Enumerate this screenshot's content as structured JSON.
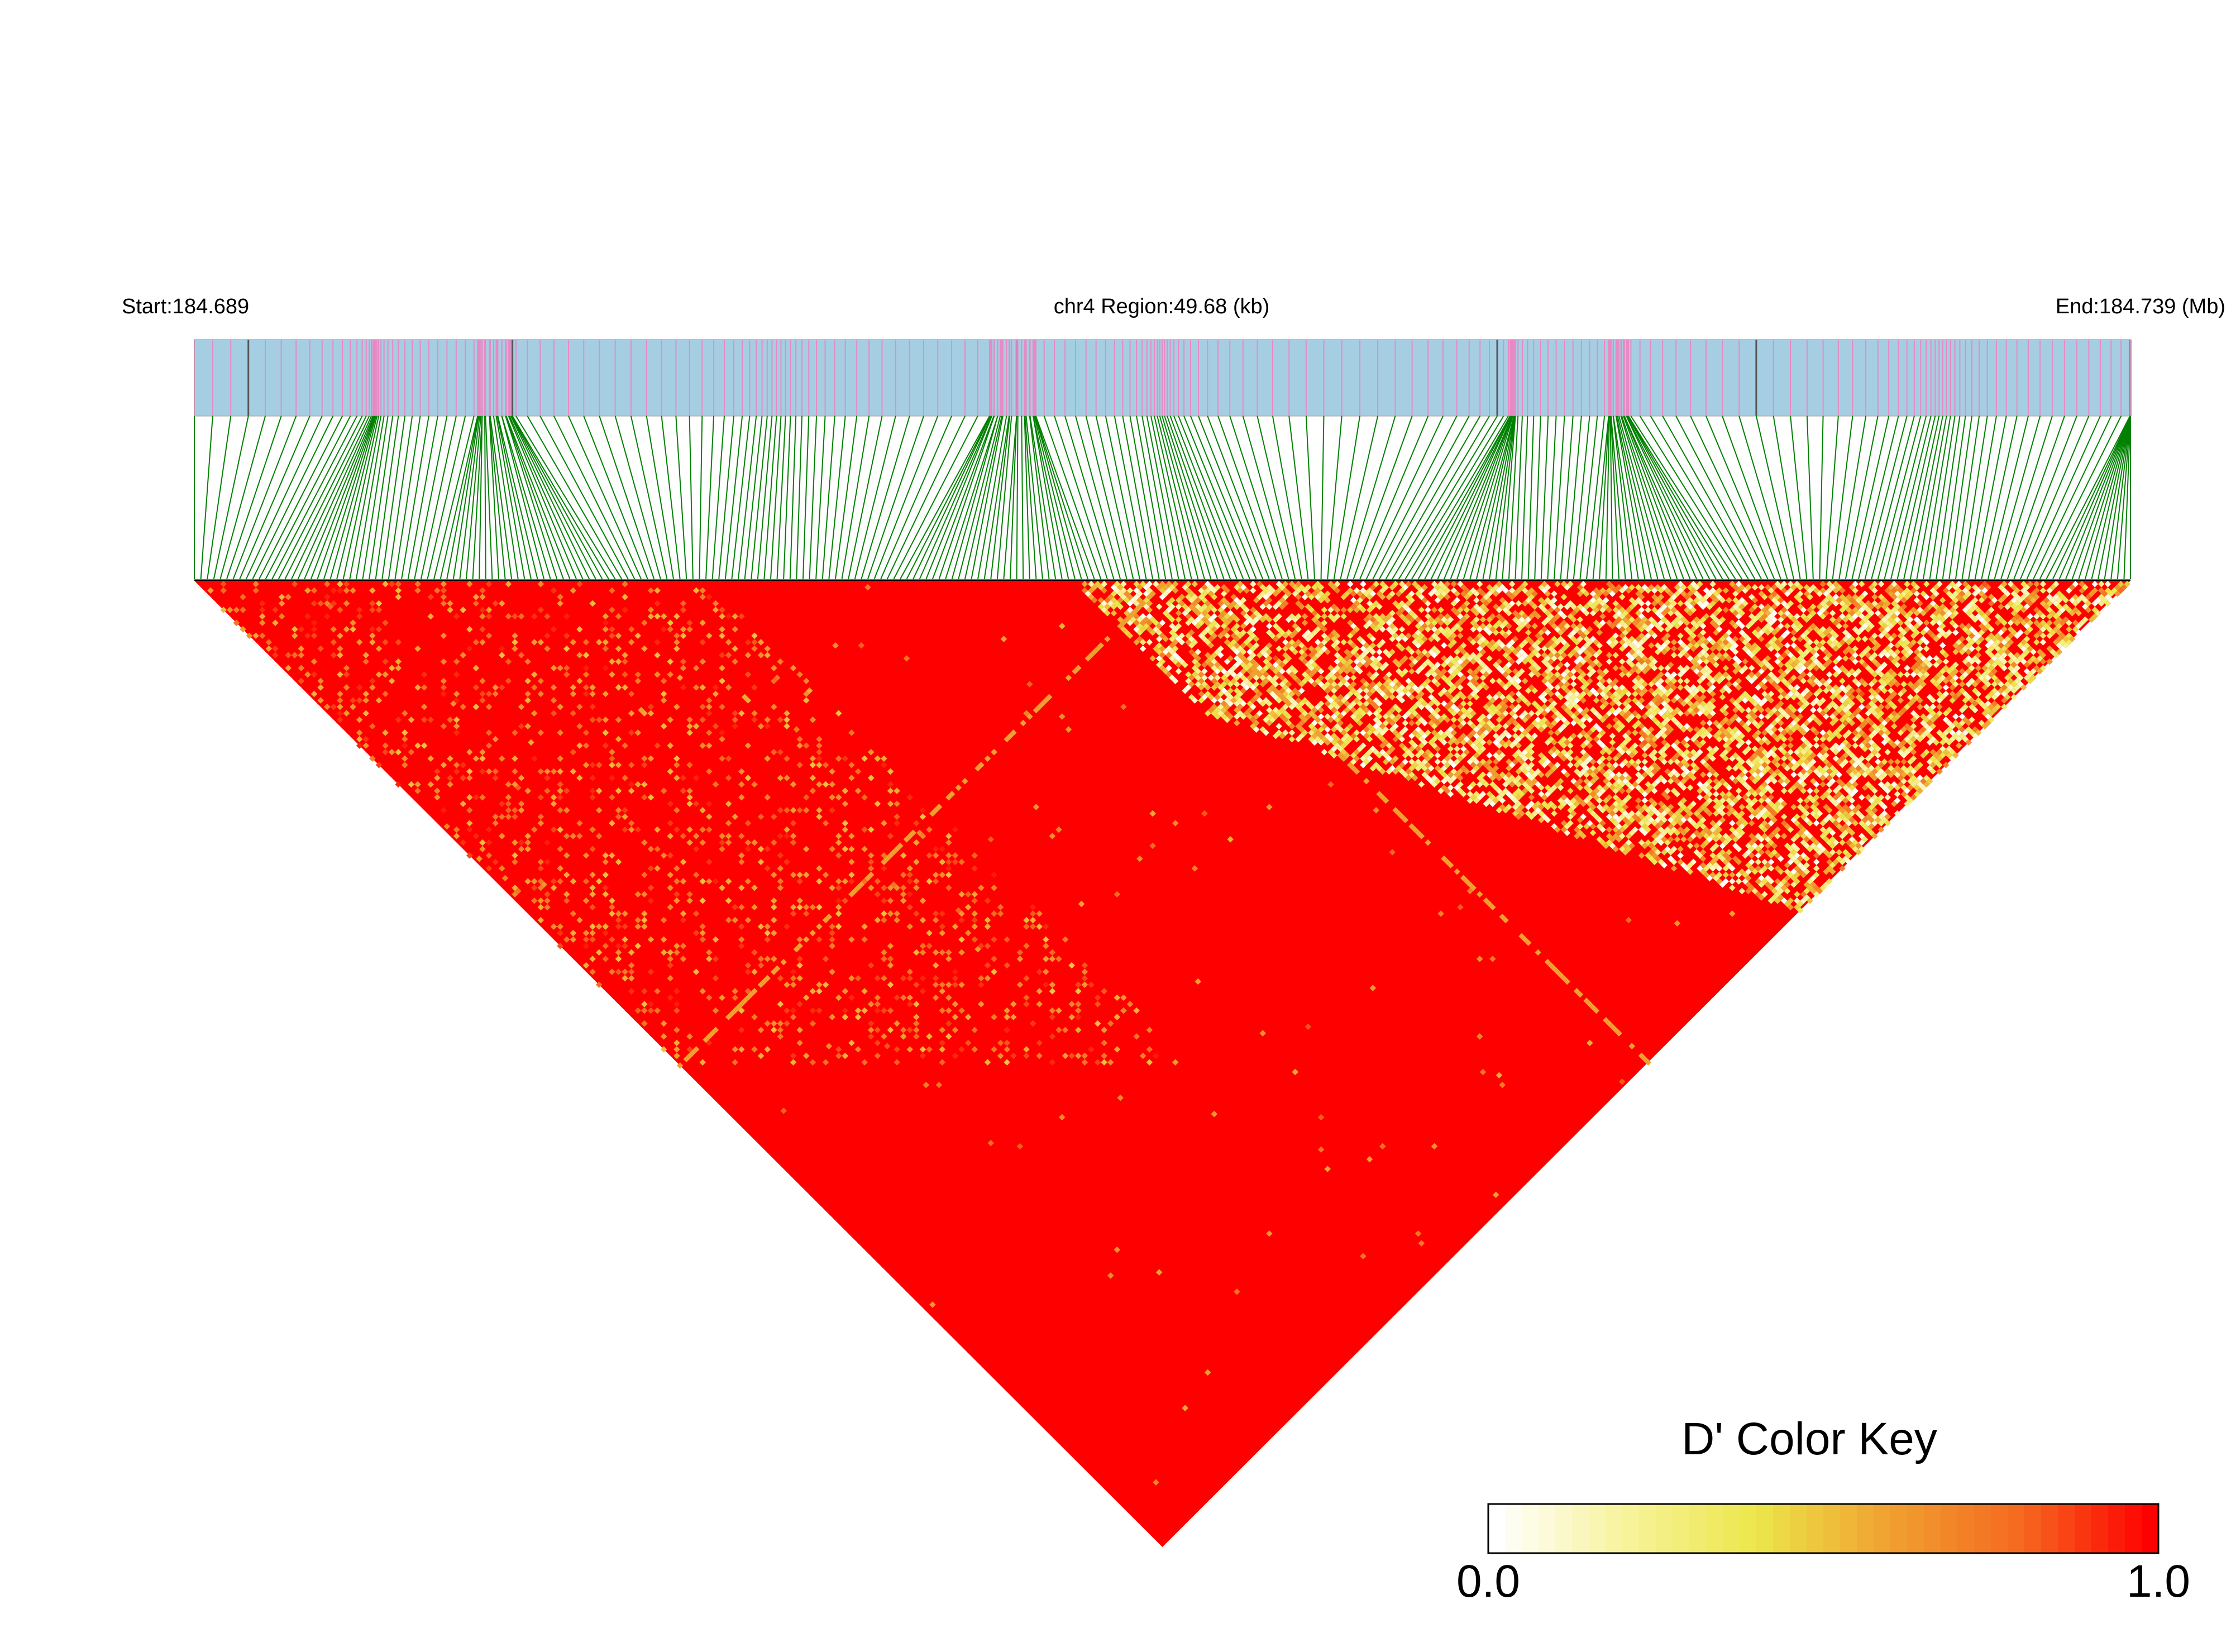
{
  "chart_data": {
    "type": "heatmap",
    "title": "",
    "region": {
      "start_label": "Start:184.689",
      "center_label": "chr4 Region:49.68 (kb)",
      "end_label": "End:184.739 (Mb)",
      "chromosome": "chr4",
      "start_mb": 184.689,
      "end_mb": 184.739,
      "length_kb": 49.68
    },
    "metric": "D'",
    "color_key": {
      "title": "D' Color Key",
      "min_label": "0.0",
      "max_label": "1.0",
      "min": 0.0,
      "max": 1.0,
      "colors": [
        "#ffffff",
        "#f7f39a",
        "#ece64a",
        "#f0a030",
        "#f56a20",
        "#ff0000"
      ]
    },
    "track_colors": {
      "background": "#a6cee3",
      "variant_marks": "#e78ac3",
      "dark_marks": "#555555",
      "connectors": "#008000"
    },
    "variant_count": 300,
    "summary": "Near-complete LD (D' close to 1.0) across most pairs; lower D' values concentrated along the right edge and near the apex."
  }
}
